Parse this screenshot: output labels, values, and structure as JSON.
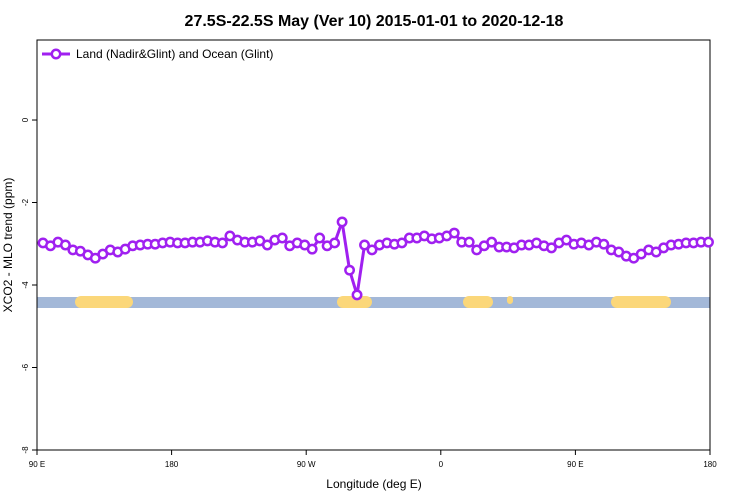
{
  "chart_data": {
    "type": "line",
    "title": "27.5S-22.5S May (Ver 10)   2015-01-01 to 2020-12-18",
    "xlabel": "Longitude (deg E)",
    "ylabel": "XCO2 - MLO trend (ppm)",
    "xlim": [
      90,
      540
    ],
    "ylim": [
      -8,
      1.94
    ],
    "xticks": [
      {
        "value": 90,
        "label": "90 E"
      },
      {
        "value": 180,
        "label": "180"
      },
      {
        "value": 270,
        "label": "90 W"
      },
      {
        "value": 360,
        "label": "0"
      },
      {
        "value": 450,
        "label": "90 E"
      },
      {
        "value": 540,
        "label": "180"
      }
    ],
    "yticks": [
      -8,
      -6,
      -4,
      -2,
      0
    ],
    "legend": "top-left",
    "x": [
      94,
      99,
      104,
      109,
      114,
      119,
      124,
      129,
      134,
      139,
      144,
      149,
      154,
      159,
      164,
      169,
      174,
      179,
      184,
      189,
      194,
      199,
      204,
      209,
      214,
      219,
      224,
      229,
      234,
      239,
      244,
      249,
      254,
      259,
      264,
      269,
      274,
      279,
      284,
      289,
      294,
      299,
      304,
      309,
      314,
      319,
      324,
      329,
      334,
      339,
      344,
      349,
      354,
      359,
      364,
      369,
      374,
      379,
      384,
      389,
      394,
      399,
      404,
      409,
      414,
      419,
      424,
      429,
      434,
      439,
      444,
      449,
      454,
      459,
      464,
      469,
      474,
      479,
      484,
      489,
      494,
      499,
      504,
      509,
      514,
      519,
      524,
      529,
      534,
      539
    ],
    "series": [
      {
        "name": "Land (Nadir&Glint) and Ocean (Glint)",
        "color": "#a020f0",
        "values": [
          -2.98,
          -3.05,
          -2.96,
          -3.03,
          -3.15,
          -3.18,
          -3.27,
          -3.35,
          -3.25,
          -3.15,
          -3.2,
          -3.13,
          -3.05,
          -3.03,
          -3.01,
          -3.01,
          -2.98,
          -2.96,
          -2.98,
          -2.98,
          -2.96,
          -2.96,
          -2.93,
          -2.96,
          -2.98,
          -2.81,
          -2.91,
          -2.96,
          -2.96,
          -2.93,
          -3.03,
          -2.91,
          -2.86,
          -3.05,
          -2.98,
          -3.03,
          -3.13,
          -2.86,
          -3.05,
          -2.98,
          -2.47,
          -3.64,
          -4.24,
          -3.03,
          -3.15,
          -3.03,
          -2.98,
          -3.01,
          -2.98,
          -2.86,
          -2.86,
          -2.81,
          -2.88,
          -2.86,
          -2.81,
          -2.74,
          -2.96,
          -2.96,
          -3.15,
          -3.05,
          -2.96,
          -3.08,
          -3.08,
          -3.1,
          -3.03,
          -3.03,
          -2.98,
          -3.05,
          -3.1,
          -2.98,
          -2.91,
          -3.01,
          -2.98,
          -3.03,
          -2.96,
          -3.01,
          -3.15,
          -3.2,
          -3.3,
          -3.35,
          -3.25,
          -3.15,
          -3.2,
          -3.1,
          -3.03,
          -3.01,
          -2.98,
          -2.98,
          -2.96,
          -2.96
        ]
      }
    ]
  }
}
